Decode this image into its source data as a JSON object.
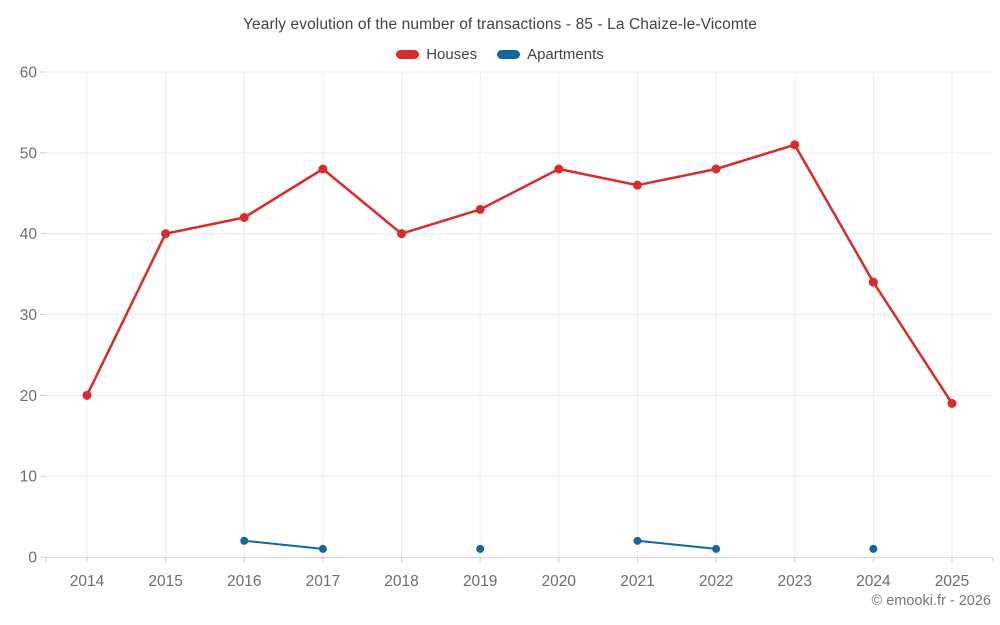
{
  "title": "Yearly evolution of the number of transactions - 85 - La Chaize-le-Vicomte",
  "footer_credit": "© emooki.fr - 2026",
  "legend": [
    {
      "label": "Houses",
      "color": "#d92b2b"
    },
    {
      "label": "Apartments",
      "color": "#11689e"
    }
  ],
  "colors": {
    "houses": "#d92b2b",
    "apartments": "#11689e",
    "grid_line": "#ececec",
    "axis_line": "#d6d6d6",
    "tick_mark": "#cccccc",
    "axis_label": "#6d6d6d",
    "title_text": "#404448",
    "background": "#ffffff"
  },
  "chart_data": {
    "type": "line",
    "title": "Yearly evolution of the number of transactions - 85 - La Chaize-le-Vicomte",
    "xlabel": "",
    "ylabel": "",
    "categories": [
      "2014",
      "2015",
      "2016",
      "2017",
      "2018",
      "2019",
      "2020",
      "2021",
      "2022",
      "2023",
      "2024",
      "2025"
    ],
    "series": [
      {
        "name": "Houses",
        "color": "#d92b2b",
        "values": [
          20,
          40,
          42,
          48,
          40,
          43,
          48,
          46,
          48,
          51,
          34,
          19
        ]
      },
      {
        "name": "Apartments",
        "color": "#11689e",
        "values": [
          null,
          null,
          2,
          1,
          null,
          1,
          null,
          2,
          1,
          null,
          1,
          null
        ]
      }
    ],
    "ylim": [
      0,
      60
    ],
    "yticks": [
      0,
      10,
      20,
      30,
      40,
      50,
      60
    ],
    "grid": true,
    "legend_position": "top"
  }
}
